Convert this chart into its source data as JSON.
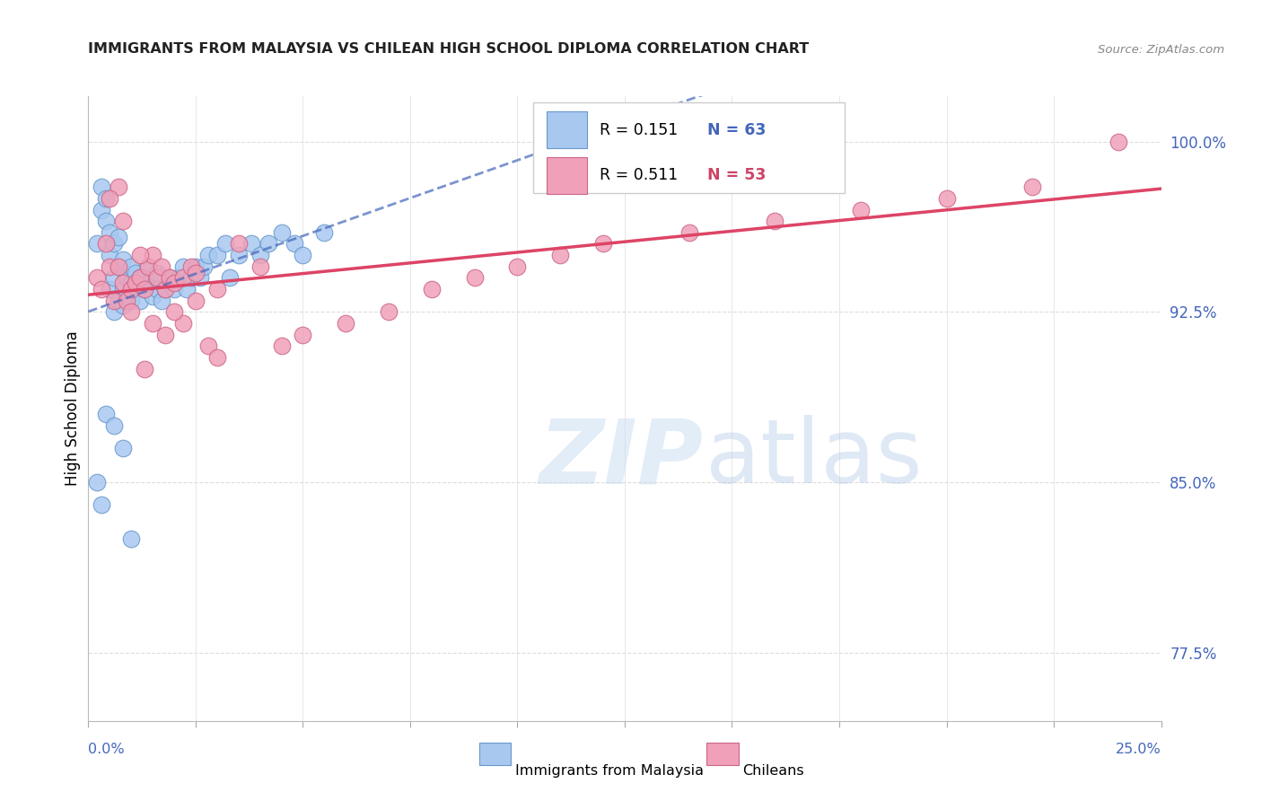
{
  "title": "IMMIGRANTS FROM MALAYSIA VS CHILEAN HIGH SCHOOL DIPLOMA CORRELATION CHART",
  "source": "Source: ZipAtlas.com",
  "ylabel": "High School Diploma",
  "yticks": [
    77.5,
    85.0,
    92.5,
    100.0
  ],
  "ytick_labels": [
    "77.5%",
    "85.0%",
    "92.5%",
    "100.0%"
  ],
  "legend_label1": "Immigrants from Malaysia",
  "legend_label2": "Chileans",
  "legend_r1": "R = 0.151",
  "legend_n1": "N = 63",
  "legend_r2": "R = 0.511",
  "legend_n2": "N = 53",
  "color_blue_fill": "#A8C8F0",
  "color_blue_edge": "#6699CC",
  "color_pink_fill": "#F0A0B8",
  "color_pink_edge": "#CC6688",
  "color_blue_line": "#4466BB",
  "color_pink_line": "#DD4466",
  "color_blue_text": "#4466BB",
  "color_pink_text": "#CC4466",
  "color_grid": "#DDDDDD",
  "xmin": 0.0,
  "xmax": 0.25,
  "ymin": 74.5,
  "ymax": 102.0,
  "watermark_zip": "ZIP",
  "watermark_atlas": "atlas",
  "background_color": "#FFFFFF"
}
